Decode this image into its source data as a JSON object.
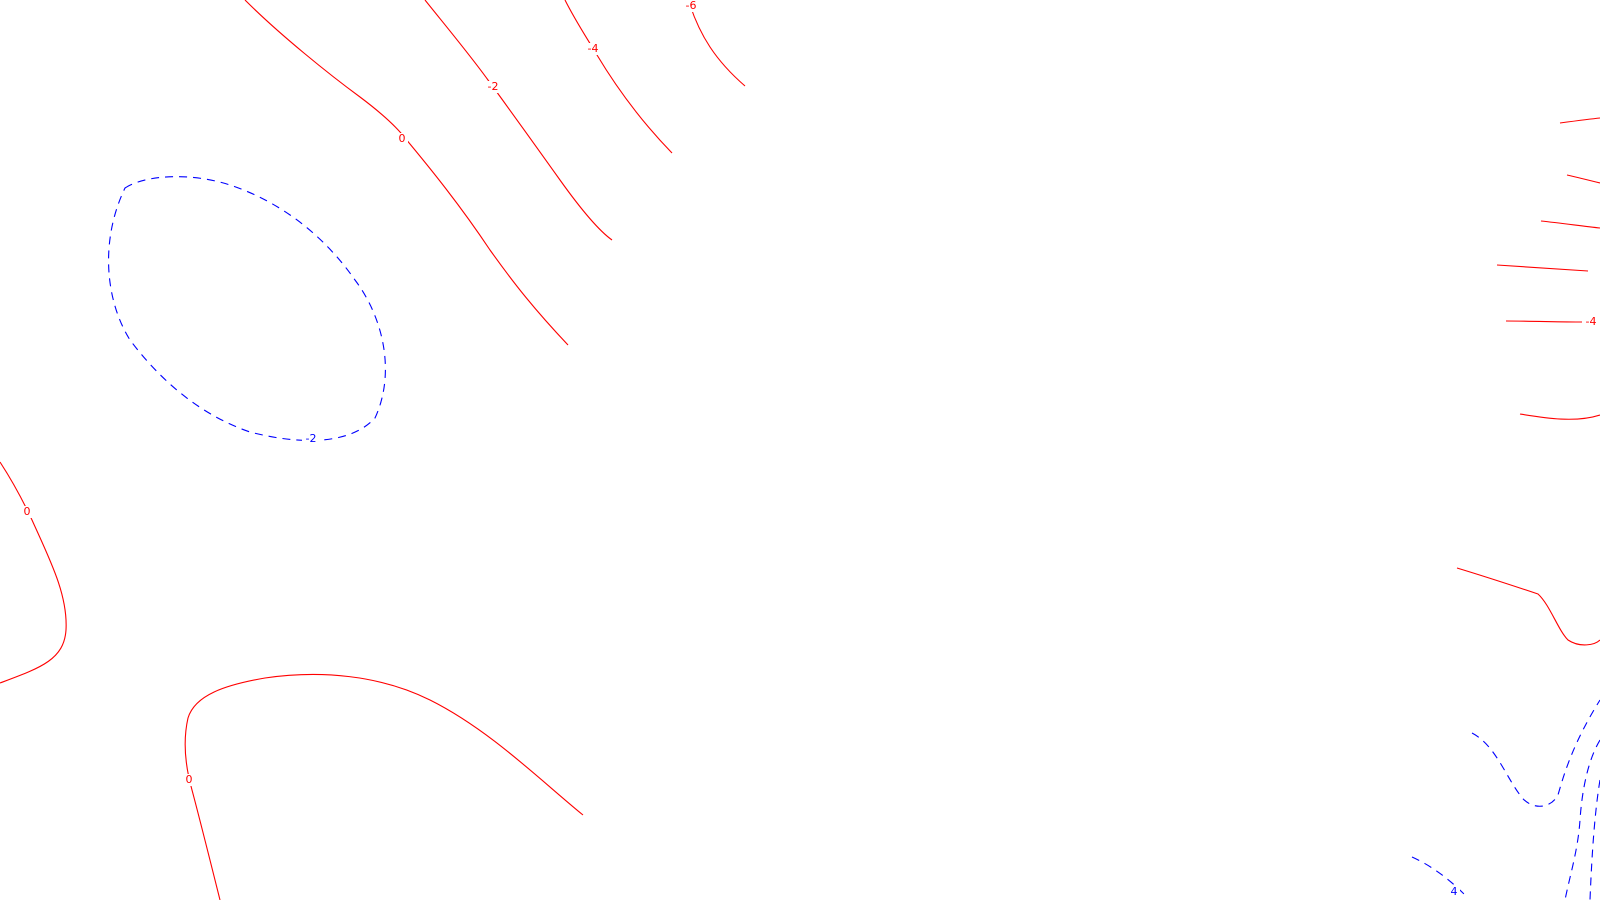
{
  "styles": {
    "positive_color": "#ff0000",
    "negative_color": "#0000ff",
    "positive_line": "solid",
    "negative_line": "dashed"
  },
  "contour_labels": {
    "tl_0": "0",
    "tl_m2": "-2",
    "tl_m4": "-4",
    "tl_m6": "-6",
    "blue_loop_m2": "-2",
    "left_0": "0",
    "bottom_0": "0",
    "right_m4": "-4",
    "br_4": "4"
  }
}
